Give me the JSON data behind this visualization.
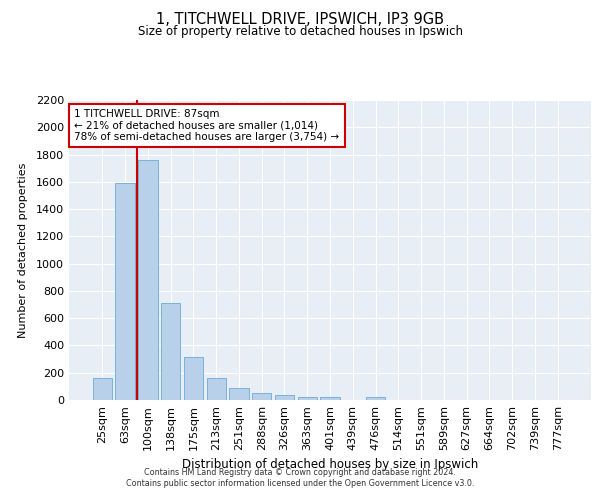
{
  "title_line1": "1, TITCHWELL DRIVE, IPSWICH, IP3 9GB",
  "title_line2": "Size of property relative to detached houses in Ipswich",
  "xlabel": "Distribution of detached houses by size in Ipswich",
  "ylabel": "Number of detached properties",
  "categories": [
    "25sqm",
    "63sqm",
    "100sqm",
    "138sqm",
    "175sqm",
    "213sqm",
    "251sqm",
    "288sqm",
    "326sqm",
    "363sqm",
    "401sqm",
    "439sqm",
    "476sqm",
    "514sqm",
    "551sqm",
    "589sqm",
    "627sqm",
    "664sqm",
    "702sqm",
    "739sqm",
    "777sqm"
  ],
  "values": [
    160,
    1590,
    1760,
    710,
    315,
    160,
    90,
    55,
    35,
    25,
    20,
    0,
    20,
    0,
    0,
    0,
    0,
    0,
    0,
    0,
    0
  ],
  "bar_color": "#b8d0ea",
  "bar_edge_color": "#6aaad4",
  "vline_color": "#cc0000",
  "vline_x": 1.5,
  "annotation_text": "1 TITCHWELL DRIVE: 87sqm\n← 21% of detached houses are smaller (1,014)\n78% of semi-detached houses are larger (3,754) →",
  "annotation_box_facecolor": "#ffffff",
  "annotation_box_edgecolor": "#cc0000",
  "ylim": [
    0,
    2200
  ],
  "yticks": [
    0,
    200,
    400,
    600,
    800,
    1000,
    1200,
    1400,
    1600,
    1800,
    2000,
    2200
  ],
  "bg_color": "#e8eef5",
  "grid_color": "#ffffff",
  "footer_line1": "Contains HM Land Registry data © Crown copyright and database right 2024.",
  "footer_line2": "Contains public sector information licensed under the Open Government Licence v3.0."
}
